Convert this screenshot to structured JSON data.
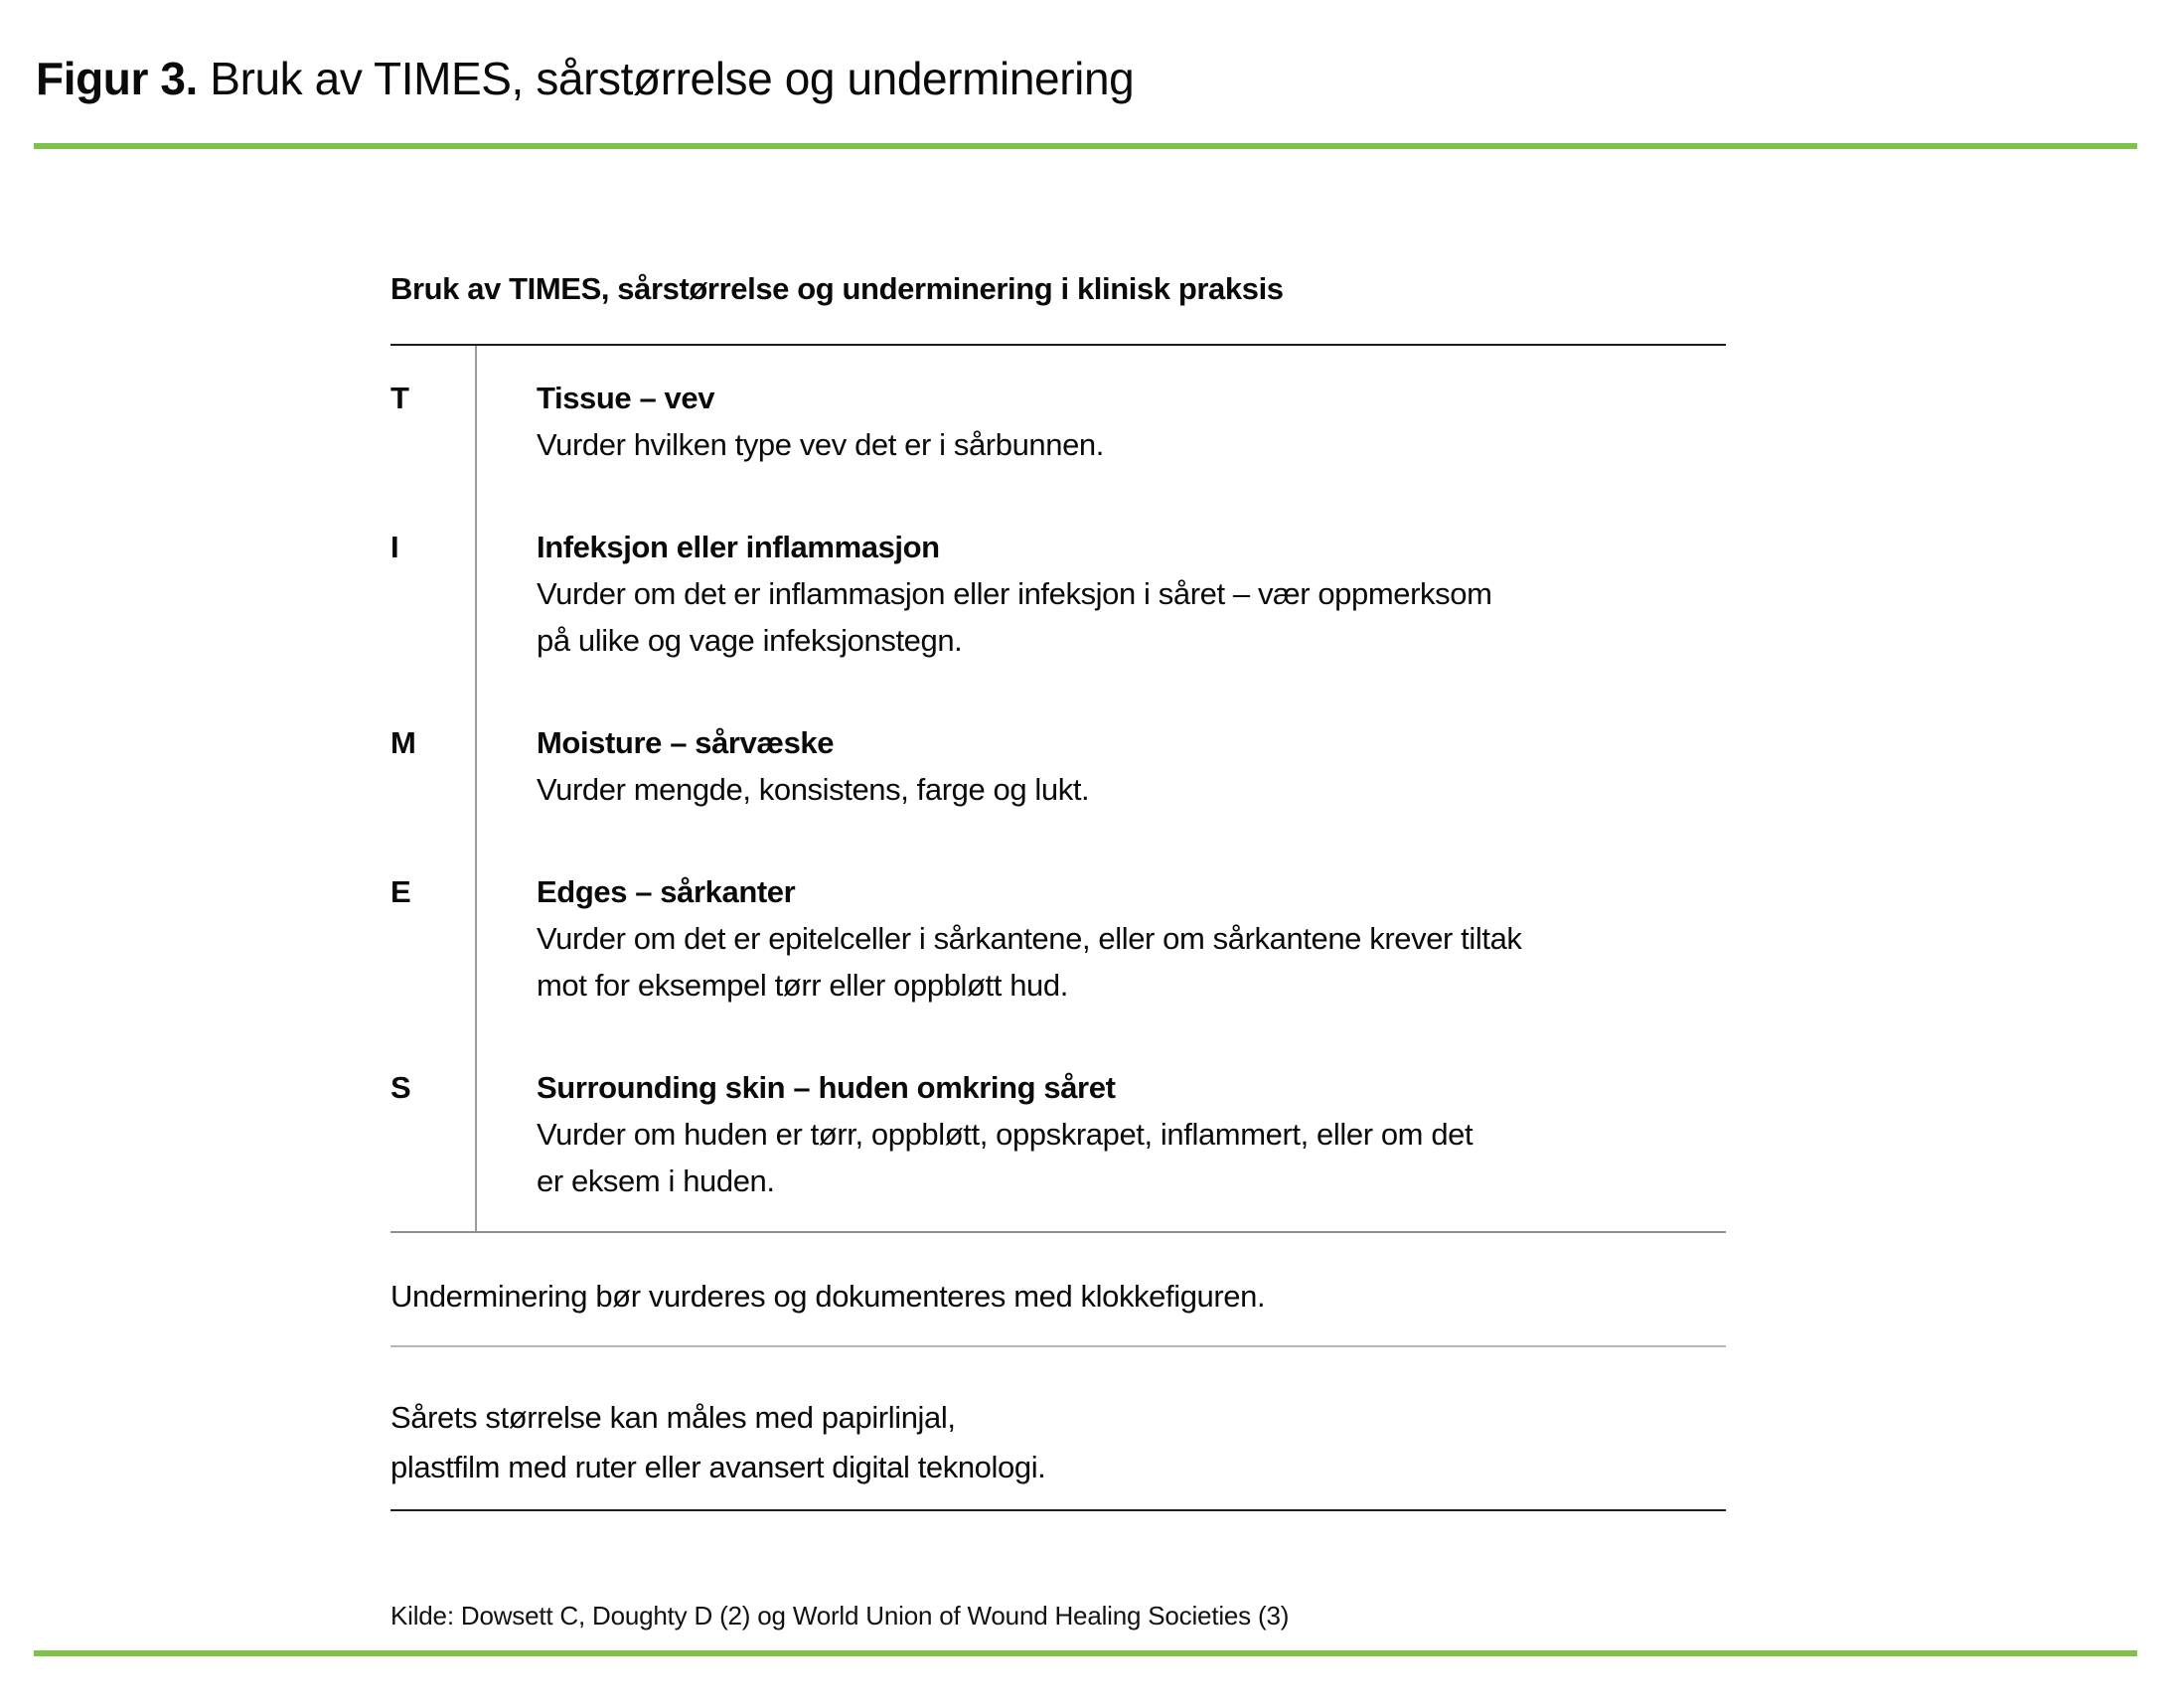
{
  "page": {
    "accent_color": "#7dc24b",
    "title_prefix": "Figur 3.",
    "title_rest": " Bruk av TIMES, sårstørrelse og underminering"
  },
  "table": {
    "header": "Bruk av TIMES, sårstørrelse og underminering i klinisk praksis",
    "rows": [
      {
        "letter": "T",
        "title": "Tissue – vev",
        "body_lines": [
          "Vurder hvilken type vev det er i sårbunnen."
        ]
      },
      {
        "letter": "I",
        "title": "Infeksjon eller inflammasjon",
        "body_lines": [
          "Vurder om det er inflammasjon eller infeksjon i såret – vær oppmerksom",
          "på ulike og vage infeksjonstegn."
        ]
      },
      {
        "letter": "M",
        "title": "Moisture – sårvæske",
        "body_lines": [
          "Vurder mengde, konsistens, farge og lukt."
        ]
      },
      {
        "letter": "E",
        "title": "Edges – sårkanter",
        "body_lines": [
          "Vurder om det er epitelceller i sårkantene, eller om sårkantene krever tiltak",
          "mot for eksempel tørr eller oppbløtt hud."
        ]
      },
      {
        "letter": "S",
        "title": "Surrounding skin – huden omkring såret",
        "body_lines": [
          "Vurder om huden er tørr, oppbløtt, oppskrapet, inflammert, eller om det",
          "er eksem i huden."
        ]
      }
    ]
  },
  "notes": {
    "undermining": "Underminering bør vurderes og dokumenteres med klokkefiguren.",
    "size_line1": "Sårets størrelse kan måles med papirlinjal,",
    "size_line2": "plastfilm med ruter eller avansert digital teknologi."
  },
  "source": "Kilde: Dowsett C, Doughty D (2) og World Union of Wound Healing Societies (3)"
}
